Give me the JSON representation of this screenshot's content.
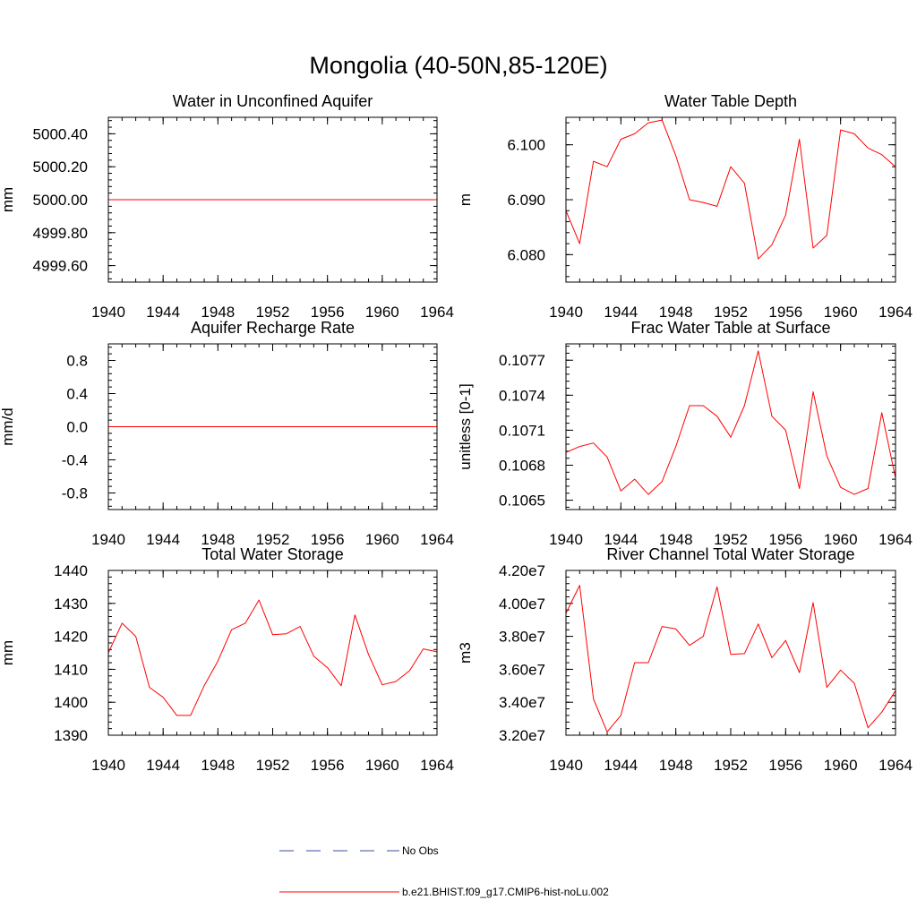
{
  "title": "Mongolia (40-50N,85-120E)",
  "legend": {
    "position": "bottom-center",
    "entries": [
      {
        "label": "No Obs",
        "color": "#3b4fa0",
        "dash": "dashed"
      },
      {
        "label": "b.e21.BHIST.f09_g17.CMIP6-hist-noLu.002",
        "color": "#ff0000",
        "dash": "solid"
      }
    ]
  },
  "chart_data": [
    {
      "type": "line",
      "title": "Water in Unconfined Aquifer",
      "ylabel": "mm",
      "xlim": [
        1940,
        1964
      ],
      "xticks": [
        1940,
        1944,
        1948,
        1952,
        1956,
        1960,
        1964
      ],
      "xtick_labels": [
        "1940",
        "1944",
        "1948",
        "1952",
        "1956",
        "1960",
        "1964"
      ],
      "ylim": [
        4999.5,
        5000.5
      ],
      "yticks": [
        4999.6,
        4999.8,
        5000.0,
        5000.2,
        5000.4
      ],
      "ytick_labels": [
        "4999.60",
        "4999.80",
        "5000.00",
        "5000.20",
        "5000.40"
      ],
      "series": [
        {
          "color": "#ff0000",
          "x": [
            1940,
            1941,
            1942,
            1943,
            1944,
            1945,
            1946,
            1947,
            1948,
            1949,
            1950,
            1951,
            1952,
            1953,
            1954,
            1955,
            1956,
            1957,
            1958,
            1959,
            1960,
            1961,
            1962,
            1963,
            1964
          ],
          "y": [
            5000,
            5000,
            5000,
            5000,
            5000,
            5000,
            5000,
            5000,
            5000,
            5000,
            5000,
            5000,
            5000,
            5000,
            5000,
            5000,
            5000,
            5000,
            5000,
            5000,
            5000,
            5000,
            5000,
            5000,
            5000
          ]
        }
      ]
    },
    {
      "type": "line",
      "title": "Water Table Depth",
      "ylabel": "m",
      "xlim": [
        1940,
        1964
      ],
      "xticks": [
        1940,
        1944,
        1948,
        1952,
        1956,
        1960,
        1964
      ],
      "xtick_labels": [
        "1940",
        "1944",
        "1948",
        "1952",
        "1956",
        "1960",
        "1964"
      ],
      "ylim": [
        6.075,
        6.105
      ],
      "yticks": [
        6.08,
        6.09,
        6.1
      ],
      "ytick_labels": [
        "6.080",
        "6.090",
        "6.100"
      ],
      "series": [
        {
          "color": "#ff0000",
          "x": [
            1940,
            1941,
            1942,
            1943,
            1944,
            1945,
            1946,
            1947,
            1948,
            1949,
            1950,
            1951,
            1952,
            1953,
            1954,
            1955,
            1956,
            1957,
            1958,
            1959,
            1960,
            1961,
            1962,
            1963,
            1964
          ],
          "y": [
            6.088,
            6.082,
            6.097,
            6.096,
            6.101,
            6.102,
            6.104,
            6.1045,
            6.098,
            6.09,
            6.0895,
            6.0888,
            6.096,
            6.093,
            6.0792,
            6.0818,
            6.0872,
            6.101,
            6.0812,
            6.0835,
            6.1027,
            6.102,
            6.0994,
            6.0982,
            6.096
          ]
        }
      ]
    },
    {
      "type": "line",
      "title": "Aquifer Recharge Rate",
      "ylabel": "mm/d",
      "xlim": [
        1940,
        1964
      ],
      "xticks": [
        1940,
        1944,
        1948,
        1952,
        1956,
        1960,
        1964
      ],
      "xtick_labels": [
        "1940",
        "1944",
        "1948",
        "1952",
        "1956",
        "1960",
        "1964"
      ],
      "ylim": [
        -1.0,
        1.0
      ],
      "yticks": [
        -0.8,
        -0.4,
        0.0,
        0.4,
        0.8
      ],
      "ytick_labels": [
        "-0.8",
        "-0.4",
        "0.0",
        "0.4",
        "0.8"
      ],
      "series": [
        {
          "color": "#ff0000",
          "x": [
            1940,
            1941,
            1942,
            1943,
            1944,
            1945,
            1946,
            1947,
            1948,
            1949,
            1950,
            1951,
            1952,
            1953,
            1954,
            1955,
            1956,
            1957,
            1958,
            1959,
            1960,
            1961,
            1962,
            1963,
            1964
          ],
          "y": [
            0,
            0,
            0,
            0,
            0,
            0,
            0,
            0,
            0,
            0,
            0,
            0,
            0,
            0,
            0,
            0,
            0,
            0,
            0,
            0,
            0,
            0,
            0,
            0,
            0
          ]
        }
      ]
    },
    {
      "type": "line",
      "title": "Frac Water Table at Surface",
      "ylabel": "unitless [0-1]",
      "xlim": [
        1940,
        1964
      ],
      "xticks": [
        1940,
        1944,
        1948,
        1952,
        1956,
        1960,
        1964
      ],
      "xtick_labels": [
        "1940",
        "1944",
        "1948",
        "1952",
        "1956",
        "1960",
        "1964"
      ],
      "ylim": [
        0.10642,
        0.10784
      ],
      "yticks": [
        0.1065,
        0.1068,
        0.1071,
        0.1074,
        0.1077
      ],
      "ytick_labels": [
        "0.1065",
        "0.1068",
        "0.1071",
        "0.1074",
        "0.1077"
      ],
      "series": [
        {
          "color": "#ff0000",
          "x": [
            1940,
            1941,
            1942,
            1943,
            1944,
            1945,
            1946,
            1947,
            1948,
            1949,
            1950,
            1951,
            1952,
            1953,
            1954,
            1955,
            1956,
            1957,
            1958,
            1959,
            1960,
            1961,
            1962,
            1963,
            1964
          ],
          "y": [
            0.10691,
            0.10696,
            0.10699,
            0.10687,
            0.10658,
            0.10668,
            0.10655,
            0.10666,
            0.10696,
            0.10731,
            0.10731,
            0.10722,
            0.10704,
            0.10731,
            0.10778,
            0.10722,
            0.1071,
            0.1066,
            0.10743,
            0.10688,
            0.10661,
            0.10655,
            0.1066,
            0.10725,
            0.10669
          ]
        }
      ]
    },
    {
      "type": "line",
      "title": "Total Water Storage",
      "ylabel": "mm",
      "xlim": [
        1940,
        1964
      ],
      "xticks": [
        1940,
        1944,
        1948,
        1952,
        1956,
        1960,
        1964
      ],
      "xtick_labels": [
        "1940",
        "1944",
        "1948",
        "1952",
        "1956",
        "1960",
        "1964"
      ],
      "ylim": [
        1390,
        1440
      ],
      "yticks": [
        1390,
        1400,
        1410,
        1420,
        1430,
        1440
      ],
      "ytick_labels": [
        "1390",
        "1400",
        "1410",
        "1420",
        "1430",
        "1440"
      ],
      "series": [
        {
          "color": "#ff0000",
          "x": [
            1940,
            1941,
            1942,
            1943,
            1944,
            1945,
            1946,
            1947,
            1948,
            1949,
            1950,
            1951,
            1952,
            1953,
            1954,
            1955,
            1956,
            1957,
            1958,
            1959,
            1960,
            1961,
            1962,
            1963,
            1964
          ],
          "y": [
            1415,
            1424,
            1420,
            1404.5,
            1401.5,
            1396,
            1396,
            1405,
            1412.5,
            1422,
            1424,
            1431,
            1420.5,
            1420.8,
            1423,
            1414,
            1410.5,
            1405,
            1426.5,
            1414.5,
            1405.3,
            1406.3,
            1409.6,
            1416.2,
            1415.3
          ]
        }
      ]
    },
    {
      "type": "line",
      "title": "River Channel Total Water Storage",
      "ylabel": "m3",
      "xlim": [
        1940,
        1964
      ],
      "xticks": [
        1940,
        1944,
        1948,
        1952,
        1956,
        1960,
        1964
      ],
      "xtick_labels": [
        "1940",
        "1944",
        "1948",
        "1952",
        "1956",
        "1960",
        "1964"
      ],
      "ylim": [
        32000000,
        42000000
      ],
      "yticks": [
        32000000,
        34000000,
        36000000,
        38000000,
        40000000,
        42000000
      ],
      "ytick_labels": [
        "3.20e7",
        "3.40e7",
        "3.60e7",
        "3.80e7",
        "4.00e7",
        "4.20e7"
      ],
      "series": [
        {
          "color": "#ff0000",
          "x": [
            1940,
            1941,
            1942,
            1943,
            1944,
            1945,
            1946,
            1947,
            1948,
            1949,
            1950,
            1951,
            1952,
            1953,
            1954,
            1955,
            1956,
            1957,
            1958,
            1959,
            1960,
            1961,
            1962,
            1963,
            1964
          ],
          "y": [
            39400000,
            41100000,
            34200000,
            32200000,
            33200000,
            36400000,
            36400000,
            38600000,
            38450000,
            37450000,
            38000000,
            41000000,
            36900000,
            36950000,
            38750000,
            36700000,
            37750000,
            35800000,
            40050000,
            34900000,
            35950000,
            35150000,
            32450000,
            33400000,
            34700000
          ]
        }
      ]
    }
  ]
}
